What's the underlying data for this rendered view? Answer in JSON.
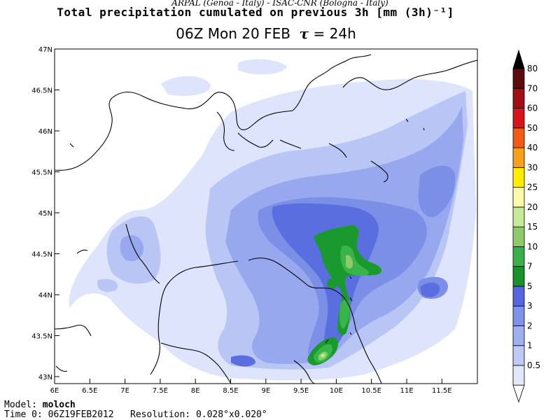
{
  "header": {
    "credit": "ARPAL (Genoa - Italy)  -  ISAC-CNR (Bologna - Italy)",
    "title": "Total precipitation cumulated on previous 3h [mm (3h)⁻¹]",
    "time_label": "06Z Mon 20 FEB",
    "tau_symbol": "τ",
    "tau_value": "= 24h"
  },
  "map": {
    "lat_labels": [
      "47N",
      "46.5N",
      "46N",
      "45.5N",
      "45N",
      "44.5N",
      "44N",
      "43.5N",
      "43N"
    ],
    "lon_labels": [
      "6E",
      "6.5E",
      "7E",
      "7.5E",
      "8E",
      "8.5E",
      "9E",
      "9.5E",
      "10E",
      "10.5E",
      "11E",
      "11.5E"
    ],
    "colors": {
      "c05": "#dde4fb",
      "c1": "#b9c6f5",
      "c2": "#97a8ef",
      "c3": "#7b8fe6",
      "c5": "#5a6ee0",
      "c7": "#1a9a2e",
      "c10": "#38b548",
      "c15": "#8fca6a",
      "c20": "#c2e699"
    }
  },
  "legend": {
    "levels": [
      "0.5",
      "1",
      "2",
      "3",
      "5",
      "7",
      "10",
      "15",
      "20",
      "25",
      "30",
      "40",
      "50",
      "60",
      "70",
      "80"
    ],
    "colors": [
      "#ffffff",
      "#e2e7fb",
      "#bfcaf6",
      "#9fb0f0",
      "#7f92e8",
      "#5565dd",
      "#19922b",
      "#39b04a",
      "#8fca6a",
      "#c8e89a",
      "#fffaaa",
      "#ffee00",
      "#f9a11d",
      "#f25b14",
      "#d8141b",
      "#a00f12",
      "#5c0a0a",
      "#000000"
    ]
  },
  "footer": {
    "model_label": "Model:",
    "model_value": "moloch",
    "time0_label": "Time 0:",
    "time0_value": "06Z19FEB2012",
    "resolution_label": "Resolution:",
    "resolution_value": "0.028°x0.020°"
  }
}
